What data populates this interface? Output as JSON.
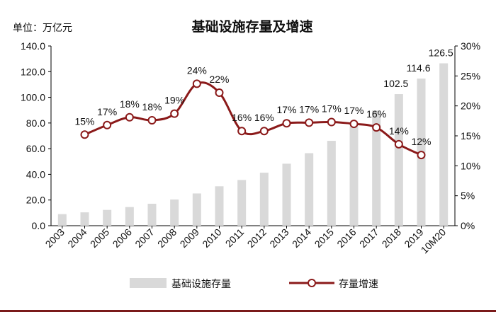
{
  "chart_data": {
    "type": "bar+line",
    "title": "基础设施存量及增速",
    "unit_label": "单位：万亿元",
    "categories": [
      "2003",
      "2004",
      "2005",
      "2006",
      "2007",
      "2008",
      "2009",
      "2010",
      "2011",
      "2012",
      "2013",
      "2014",
      "2015",
      "2016",
      "2017",
      "2018",
      "2019",
      "10M20"
    ],
    "bar_series": {
      "name": "基础设施存量",
      "values": [
        9.0,
        10.4,
        12.3,
        14.5,
        17.1,
        20.4,
        25.1,
        30.7,
        35.6,
        41.3,
        48.3,
        56.5,
        66.1,
        77.4,
        89.8,
        102.5,
        114.6,
        126.5
      ],
      "labels": [
        "",
        "",
        "",
        "",
        "",
        "",
        "",
        "",
        "",
        "",
        "",
        "",
        "",
        "",
        "",
        "102.5",
        "114.6",
        "126.5"
      ],
      "color": "#d9d9d9"
    },
    "line_series": {
      "name": "存量增速",
      "values": [
        null,
        15.2,
        16.8,
        18.1,
        17.6,
        18.7,
        23.7,
        22.2,
        15.8,
        15.8,
        17.1,
        17.2,
        17.3,
        17.0,
        16.4,
        13.6,
        11.8,
        null
      ],
      "labels": [
        "",
        "15%",
        "17%",
        "18%",
        "18%",
        "19%",
        "24%",
        "22%",
        "16%",
        "16%",
        "17%",
        "17%",
        "17%",
        "17%",
        "16%",
        "14%",
        "12%",
        ""
      ],
      "color": "#8b1a1a"
    },
    "y_left": {
      "min": 0,
      "max": 140,
      "ticks": [
        "0.0",
        "20.0",
        "40.0",
        "60.0",
        "80.0",
        "100.0",
        "120.0",
        "140.0"
      ]
    },
    "y_right": {
      "min": 0,
      "max": 30,
      "ticks": [
        "0%",
        "5%",
        "10%",
        "15%",
        "20%",
        "25%",
        "30%"
      ]
    },
    "legend_position": "bottom",
    "grid": false
  }
}
